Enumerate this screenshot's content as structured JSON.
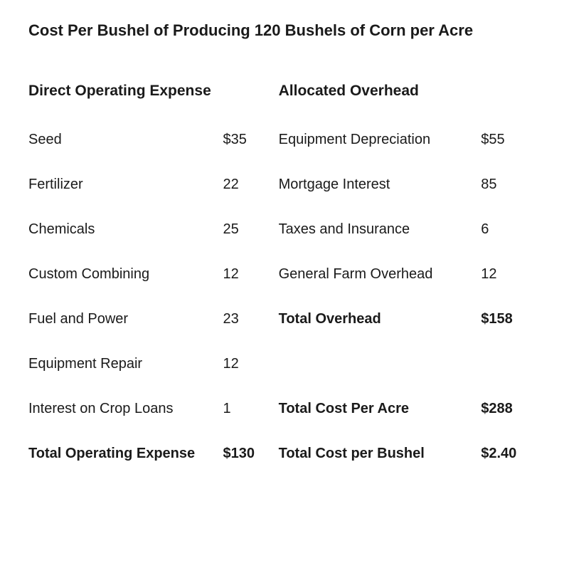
{
  "title": "Cost Per Bushel of Producing 120 Bushels of Corn per Acre",
  "headers": {
    "left": "Direct Operating Expense",
    "right": "Allocated Overhead"
  },
  "rows": [
    {
      "leftLabel": "Seed",
      "leftValue": "$35",
      "rightLabel": "Equipment Depreciation",
      "rightValue": "$55",
      "leftBold": false,
      "rightBold": false
    },
    {
      "leftLabel": "Fertilizer",
      "leftValue": "22",
      "rightLabel": "Mortgage Interest",
      "rightValue": "85",
      "leftBold": false,
      "rightBold": false
    },
    {
      "leftLabel": "Chemicals",
      "leftValue": "25",
      "rightLabel": "Taxes and Insurance",
      "rightValue": "6",
      "leftBold": false,
      "rightBold": false
    },
    {
      "leftLabel": "Custom Combining",
      "leftValue": "12",
      "rightLabel": "General Farm Overhead",
      "rightValue": "12",
      "leftBold": false,
      "rightBold": false
    },
    {
      "leftLabel": "Fuel and Power",
      "leftValue": "23",
      "rightLabel": "Total Overhead",
      "rightValue": "$158",
      "leftBold": false,
      "rightBold": true
    },
    {
      "leftLabel": "Equipment Repair",
      "leftValue": "12",
      "rightLabel": "",
      "rightValue": "",
      "leftBold": false,
      "rightBold": false
    },
    {
      "leftLabel": "Interest on Crop Loans",
      "leftValue": "1",
      "rightLabel": "Total Cost Per Acre",
      "rightValue": "$288",
      "leftBold": false,
      "rightBold": true
    },
    {
      "leftLabel": "Total Operating Expense",
      "leftValue": "$130",
      "rightLabel": "Total Cost per Bushel",
      "rightValue": "$2.40",
      "leftBold": true,
      "rightBold": true
    }
  ]
}
